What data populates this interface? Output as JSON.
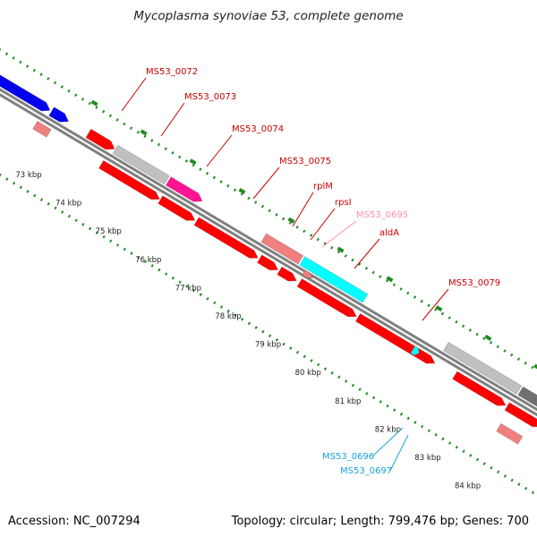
{
  "title": "Mycoplasma synoviae 53, complete genome",
  "footer": {
    "accession": "Accession: NC_007294",
    "summary": "Topology: circular; Length: 799,476 bp; Genes: 700"
  },
  "colors": {
    "backbone": "#808080",
    "dots": "#228b22",
    "red": "#ff0000",
    "blue": "#0000ee",
    "gray": "#c0c0c0",
    "dark_gray": "#707070",
    "magenta": "#ff1493",
    "salmon": "#f08080",
    "cyan": "#00ffff",
    "label_red": "#cc0000",
    "label_pink": "#ff8fb0",
    "label_cyan": "#1aa3d6"
  },
  "ticks": [
    {
      "label": "73 kbp"
    },
    {
      "label": "74 kbp"
    },
    {
      "label": "75 kbp"
    },
    {
      "label": "76 kbp"
    },
    {
      "label": "77 kbp"
    },
    {
      "label": "78 kbp"
    },
    {
      "label": "79 kbp"
    },
    {
      "label": "80 kbp"
    },
    {
      "label": "81 kbp"
    },
    {
      "label": "82 kbp"
    },
    {
      "label": "83 kbp"
    },
    {
      "label": "84 kbp"
    }
  ],
  "gene_labels": [
    {
      "text": "MS53_0072",
      "color": "label_red"
    },
    {
      "text": "MS53_0073",
      "color": "label_red"
    },
    {
      "text": "MS53_0074",
      "color": "label_red"
    },
    {
      "text": "MS53_0075",
      "color": "label_red"
    },
    {
      "text": "rplM",
      "color": "label_red"
    },
    {
      "text": "rpsI",
      "color": "label_red"
    },
    {
      "text": "MS53_0695",
      "color": "label_pink"
    },
    {
      "text": "aldA",
      "color": "label_red"
    },
    {
      "text": "MS53_0079",
      "color": "label_red"
    },
    {
      "text": "MS53_0696",
      "color": "label_cyan"
    },
    {
      "text": "MS53_0697",
      "color": "label_cyan"
    }
  ]
}
